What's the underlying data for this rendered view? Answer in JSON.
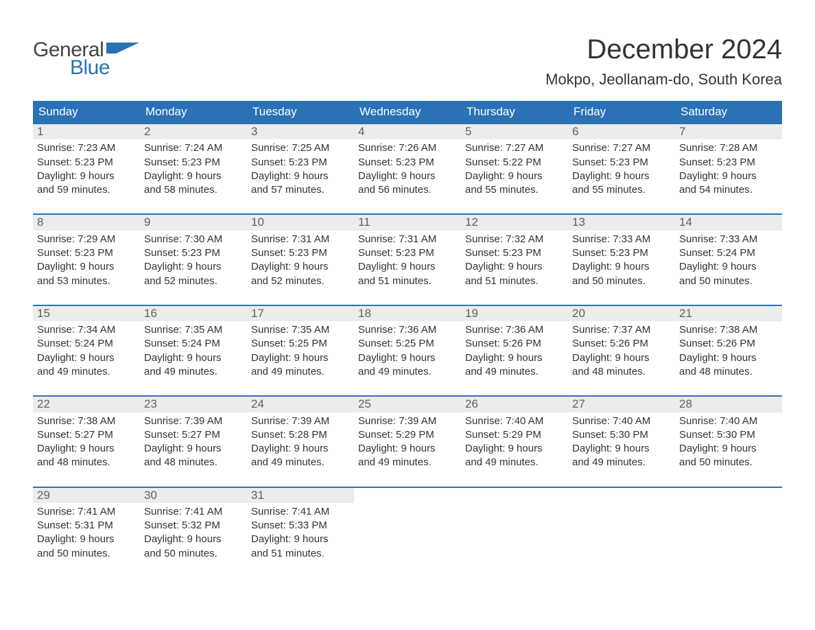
{
  "brand": {
    "general": "General",
    "blue": "Blue"
  },
  "title": "December 2024",
  "location": "Mokpo, Jeollanam-do, South Korea",
  "colors": {
    "header_bg": "#2a72b5",
    "header_text": "#ffffff",
    "daynum_bg": "#ececec",
    "daynum_text": "#606060",
    "body_text": "#333333",
    "rule": "#2a72b5",
    "logo_blue": "#2a72b5",
    "logo_gray": "#444444"
  },
  "weekdays": [
    "Sunday",
    "Monday",
    "Tuesday",
    "Wednesday",
    "Thursday",
    "Friday",
    "Saturday"
  ],
  "weeks": [
    [
      {
        "n": "1",
        "sunrise": "7:23 AM",
        "sunset": "5:23 PM",
        "daylight1": "Daylight: 9 hours",
        "daylight2": "and 59 minutes."
      },
      {
        "n": "2",
        "sunrise": "7:24 AM",
        "sunset": "5:23 PM",
        "daylight1": "Daylight: 9 hours",
        "daylight2": "and 58 minutes."
      },
      {
        "n": "3",
        "sunrise": "7:25 AM",
        "sunset": "5:23 PM",
        "daylight1": "Daylight: 9 hours",
        "daylight2": "and 57 minutes."
      },
      {
        "n": "4",
        "sunrise": "7:26 AM",
        "sunset": "5:23 PM",
        "daylight1": "Daylight: 9 hours",
        "daylight2": "and 56 minutes."
      },
      {
        "n": "5",
        "sunrise": "7:27 AM",
        "sunset": "5:22 PM",
        "daylight1": "Daylight: 9 hours",
        "daylight2": "and 55 minutes."
      },
      {
        "n": "6",
        "sunrise": "7:27 AM",
        "sunset": "5:23 PM",
        "daylight1": "Daylight: 9 hours",
        "daylight2": "and 55 minutes."
      },
      {
        "n": "7",
        "sunrise": "7:28 AM",
        "sunset": "5:23 PM",
        "daylight1": "Daylight: 9 hours",
        "daylight2": "and 54 minutes."
      }
    ],
    [
      {
        "n": "8",
        "sunrise": "7:29 AM",
        "sunset": "5:23 PM",
        "daylight1": "Daylight: 9 hours",
        "daylight2": "and 53 minutes."
      },
      {
        "n": "9",
        "sunrise": "7:30 AM",
        "sunset": "5:23 PM",
        "daylight1": "Daylight: 9 hours",
        "daylight2": "and 52 minutes."
      },
      {
        "n": "10",
        "sunrise": "7:31 AM",
        "sunset": "5:23 PM",
        "daylight1": "Daylight: 9 hours",
        "daylight2": "and 52 minutes."
      },
      {
        "n": "11",
        "sunrise": "7:31 AM",
        "sunset": "5:23 PM",
        "daylight1": "Daylight: 9 hours",
        "daylight2": "and 51 minutes."
      },
      {
        "n": "12",
        "sunrise": "7:32 AM",
        "sunset": "5:23 PM",
        "daylight1": "Daylight: 9 hours",
        "daylight2": "and 51 minutes."
      },
      {
        "n": "13",
        "sunrise": "7:33 AM",
        "sunset": "5:23 PM",
        "daylight1": "Daylight: 9 hours",
        "daylight2": "and 50 minutes."
      },
      {
        "n": "14",
        "sunrise": "7:33 AM",
        "sunset": "5:24 PM",
        "daylight1": "Daylight: 9 hours",
        "daylight2": "and 50 minutes."
      }
    ],
    [
      {
        "n": "15",
        "sunrise": "7:34 AM",
        "sunset": "5:24 PM",
        "daylight1": "Daylight: 9 hours",
        "daylight2": "and 49 minutes."
      },
      {
        "n": "16",
        "sunrise": "7:35 AM",
        "sunset": "5:24 PM",
        "daylight1": "Daylight: 9 hours",
        "daylight2": "and 49 minutes."
      },
      {
        "n": "17",
        "sunrise": "7:35 AM",
        "sunset": "5:25 PM",
        "daylight1": "Daylight: 9 hours",
        "daylight2": "and 49 minutes."
      },
      {
        "n": "18",
        "sunrise": "7:36 AM",
        "sunset": "5:25 PM",
        "daylight1": "Daylight: 9 hours",
        "daylight2": "and 49 minutes."
      },
      {
        "n": "19",
        "sunrise": "7:36 AM",
        "sunset": "5:26 PM",
        "daylight1": "Daylight: 9 hours",
        "daylight2": "and 49 minutes."
      },
      {
        "n": "20",
        "sunrise": "7:37 AM",
        "sunset": "5:26 PM",
        "daylight1": "Daylight: 9 hours",
        "daylight2": "and 48 minutes."
      },
      {
        "n": "21",
        "sunrise": "7:38 AM",
        "sunset": "5:26 PM",
        "daylight1": "Daylight: 9 hours",
        "daylight2": "and 48 minutes."
      }
    ],
    [
      {
        "n": "22",
        "sunrise": "7:38 AM",
        "sunset": "5:27 PM",
        "daylight1": "Daylight: 9 hours",
        "daylight2": "and 48 minutes."
      },
      {
        "n": "23",
        "sunrise": "7:39 AM",
        "sunset": "5:27 PM",
        "daylight1": "Daylight: 9 hours",
        "daylight2": "and 48 minutes."
      },
      {
        "n": "24",
        "sunrise": "7:39 AM",
        "sunset": "5:28 PM",
        "daylight1": "Daylight: 9 hours",
        "daylight2": "and 49 minutes."
      },
      {
        "n": "25",
        "sunrise": "7:39 AM",
        "sunset": "5:29 PM",
        "daylight1": "Daylight: 9 hours",
        "daylight2": "and 49 minutes."
      },
      {
        "n": "26",
        "sunrise": "7:40 AM",
        "sunset": "5:29 PM",
        "daylight1": "Daylight: 9 hours",
        "daylight2": "and 49 minutes."
      },
      {
        "n": "27",
        "sunrise": "7:40 AM",
        "sunset": "5:30 PM",
        "daylight1": "Daylight: 9 hours",
        "daylight2": "and 49 minutes."
      },
      {
        "n": "28",
        "sunrise": "7:40 AM",
        "sunset": "5:30 PM",
        "daylight1": "Daylight: 9 hours",
        "daylight2": "and 50 minutes."
      }
    ],
    [
      {
        "n": "29",
        "sunrise": "7:41 AM",
        "sunset": "5:31 PM",
        "daylight1": "Daylight: 9 hours",
        "daylight2": "and 50 minutes."
      },
      {
        "n": "30",
        "sunrise": "7:41 AM",
        "sunset": "5:32 PM",
        "daylight1": "Daylight: 9 hours",
        "daylight2": "and 50 minutes."
      },
      {
        "n": "31",
        "sunrise": "7:41 AM",
        "sunset": "5:33 PM",
        "daylight1": "Daylight: 9 hours",
        "daylight2": "and 51 minutes."
      },
      null,
      null,
      null,
      null
    ]
  ],
  "labels": {
    "sunrise": "Sunrise: ",
    "sunset": "Sunset: "
  }
}
